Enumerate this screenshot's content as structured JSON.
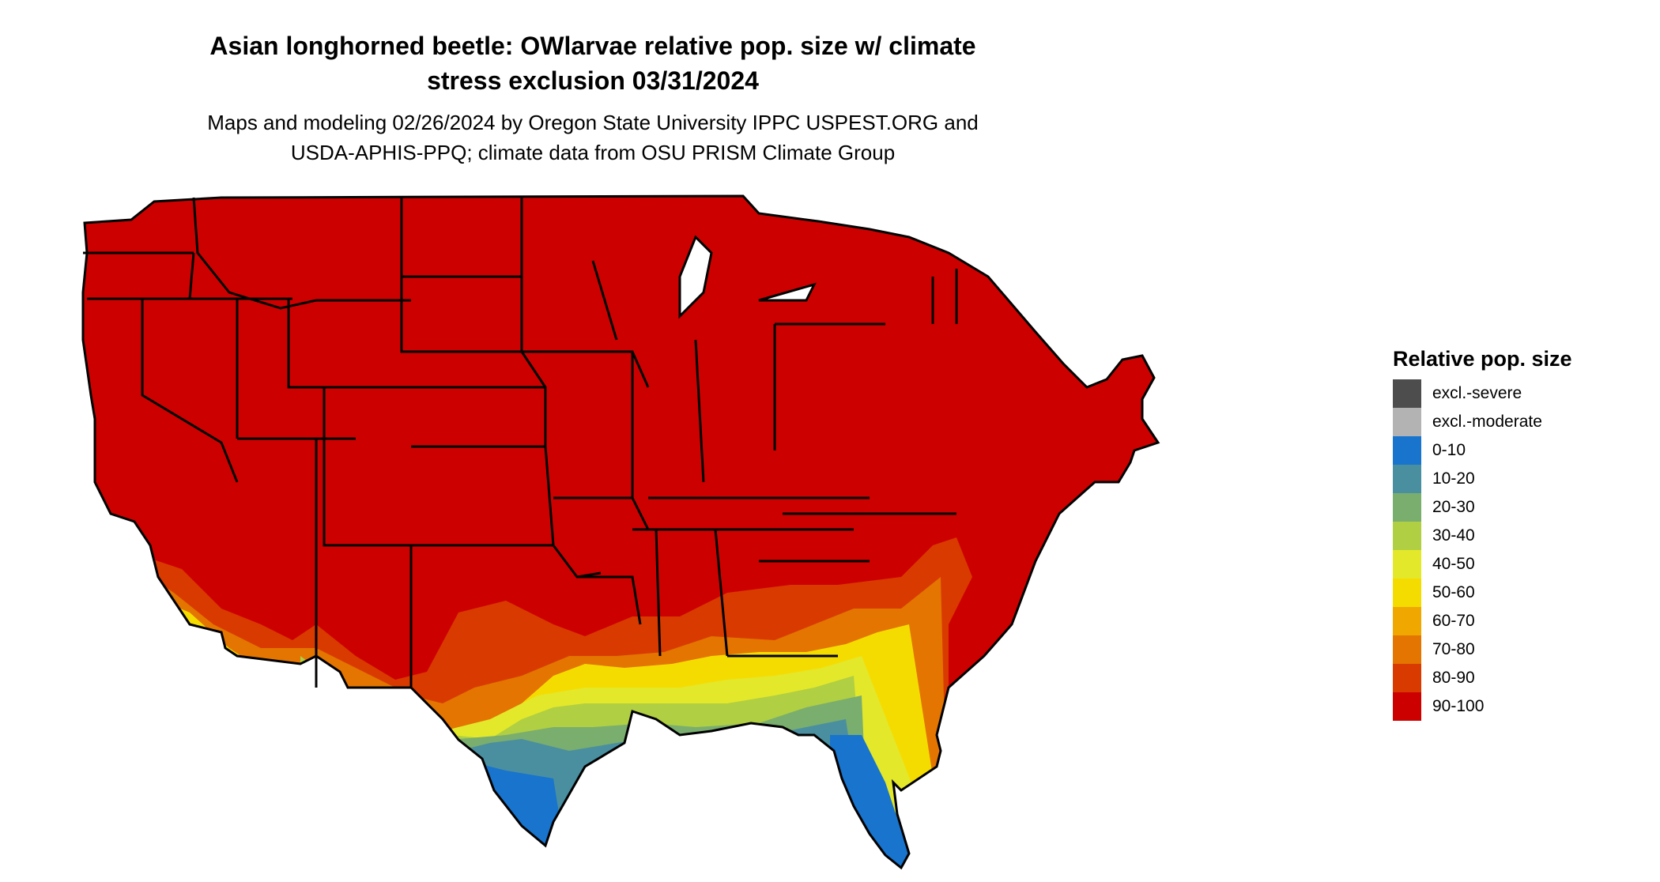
{
  "title": {
    "line1": "Asian longhorned beetle: OWlarvae relative pop. size w/ climate",
    "line2": "stress exclusion 03/31/2024"
  },
  "subtitle": {
    "line1": "Maps and modeling 02/26/2024 by Oregon State University IPPC USPEST.ORG and",
    "line2": "USDA-APHIS-PPQ; climate data from OSU PRISM Climate Group"
  },
  "legend": {
    "title": "Relative pop. size",
    "items": [
      {
        "label": "excl.-severe",
        "color": "#4d4d4d"
      },
      {
        "label": "excl.-moderate",
        "color": "#b3b3b3"
      },
      {
        "label": "0-10",
        "color": "#1874cd"
      },
      {
        "label": "10-20",
        "color": "#4a8fa0"
      },
      {
        "label": "20-30",
        "color": "#7aae6e"
      },
      {
        "label": "30-40",
        "color": "#b0cf42"
      },
      {
        "label": "40-50",
        "color": "#e3e82a"
      },
      {
        "label": "50-60",
        "color": "#f5dc00"
      },
      {
        "label": "60-70",
        "color": "#f0a800"
      },
      {
        "label": "70-80",
        "color": "#e37500"
      },
      {
        "label": "80-90",
        "color": "#d93a00"
      },
      {
        "label": "90-100",
        "color": "#cd0000"
      }
    ]
  },
  "map": {
    "region": "contiguous-united-states",
    "band_colors": {
      "high": "#cd0000",
      "b80_90": "#d93a00",
      "b70_80": "#e37500",
      "b50_60": "#f5dc00",
      "b40_50": "#e3e82a",
      "b30_40": "#b0cf42",
      "b20_30": "#7aae6e",
      "b10_20": "#4a8fa0",
      "b0_10": "#1874cd"
    }
  }
}
